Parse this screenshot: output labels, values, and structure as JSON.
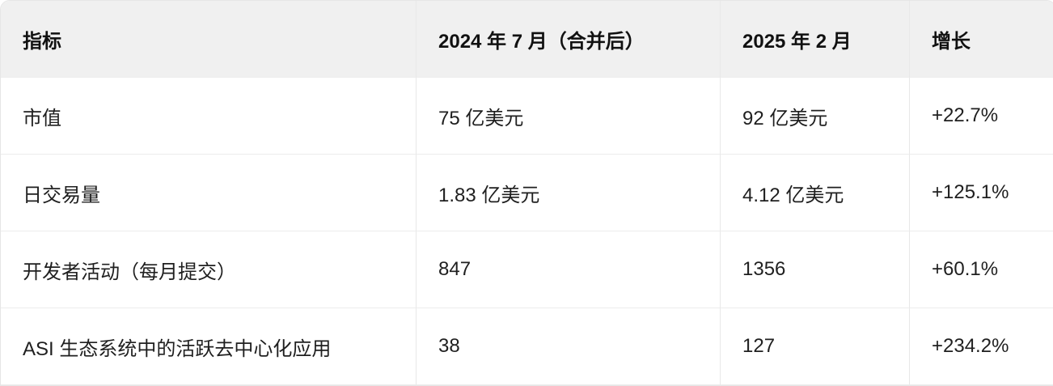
{
  "table": {
    "headers": [
      "指标",
      "2024 年 7 月（合并后）",
      "2025 年 2 月",
      "增长"
    ],
    "rows": [
      [
        "市值",
        "75 亿美元",
        "92 亿美元",
        "+22.7%"
      ],
      [
        "日交易量",
        "1.83 亿美元",
        "4.12 亿美元",
        "+125.1%"
      ],
      [
        "开发者活动（每月提交）",
        "847",
        "1356",
        "+60.1%"
      ],
      [
        "ASI 生态系统中的活跃去中心化应用",
        "38",
        "127",
        "+234.2%"
      ]
    ]
  }
}
